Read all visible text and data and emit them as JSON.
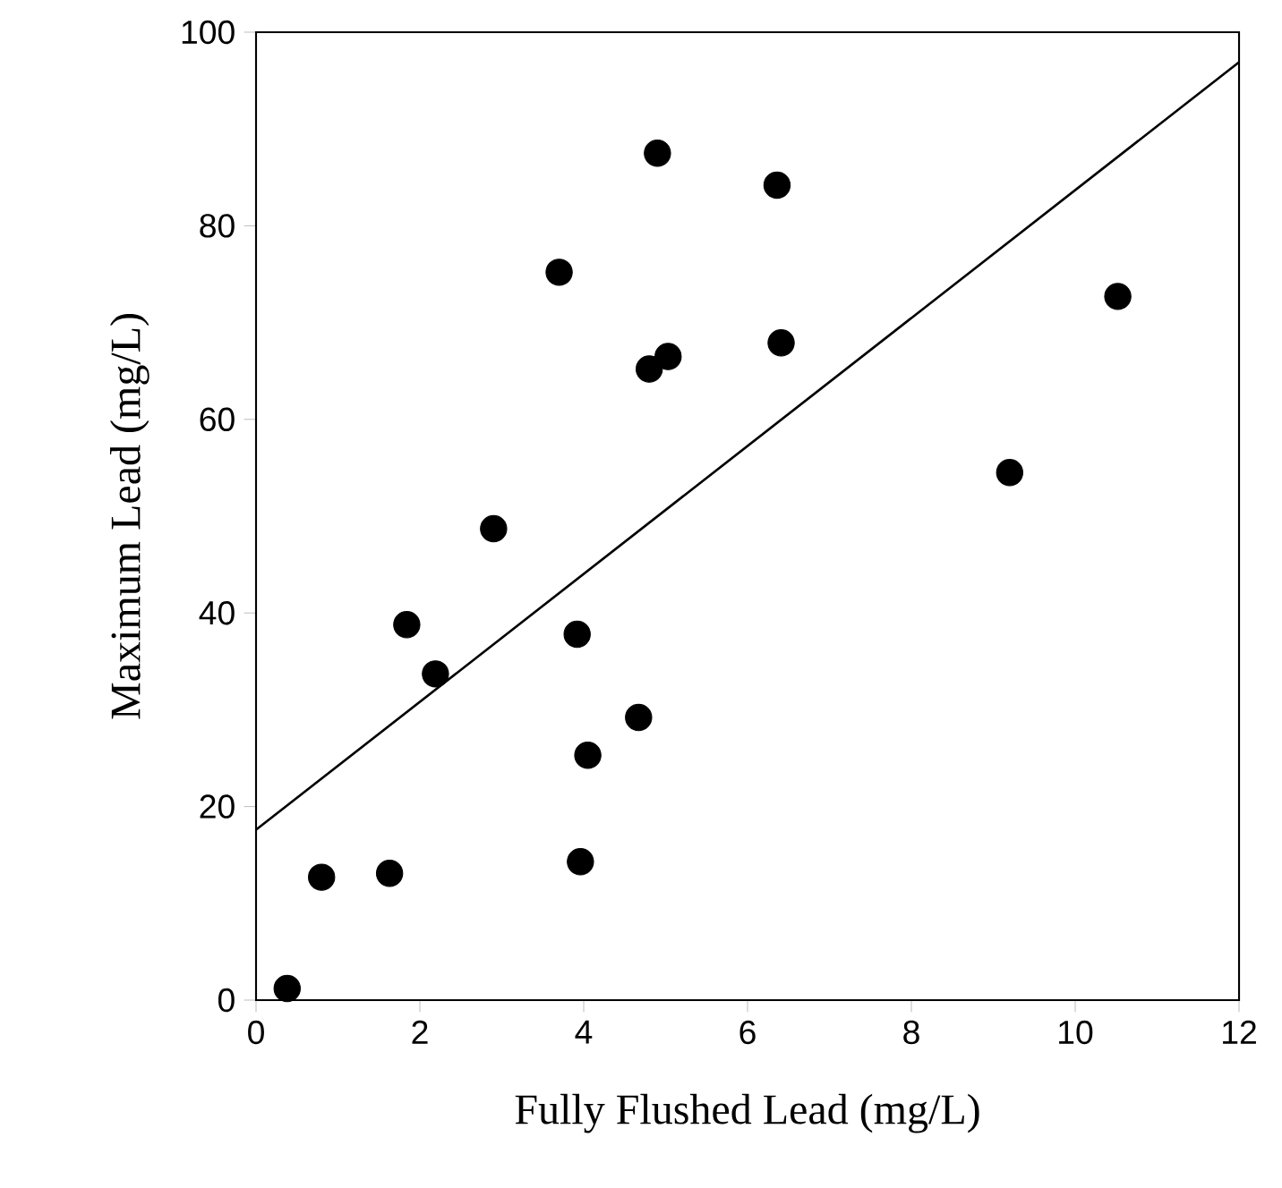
{
  "chart_data": {
    "type": "scatter",
    "xlabel": "Fully Flushed Lead (mg/L)",
    "ylabel": "Maximum Lead (mg/L)",
    "xlim": [
      0,
      12
    ],
    "ylim": [
      0,
      100
    ],
    "xticks": [
      0,
      2,
      4,
      6,
      8,
      10,
      12
    ],
    "yticks": [
      0,
      20,
      40,
      60,
      80,
      100
    ],
    "series": [
      {
        "color": "#000000",
        "marker": "circle",
        "x": [
          0.38,
          0.8,
          1.63,
          1.84,
          2.19,
          2.9,
          3.92,
          3.96,
          4.05,
          4.67,
          4.9,
          6.36,
          3.7,
          10.52,
          6.41,
          4.8,
          5.03,
          9.2
        ],
        "values": [
          1.2,
          12.7,
          13.1,
          38.8,
          33.7,
          48.7,
          37.8,
          14.3,
          25.3,
          29.2,
          87.5,
          84.2,
          75.2,
          72.7,
          67.9,
          65.2,
          66.5,
          54.5
        ]
      },
      {
        "type": "line",
        "color": "#000000",
        "marker": "none",
        "line_style": "solid",
        "x": [
          0,
          12
        ],
        "values": [
          17.6,
          96.9
        ]
      }
    ]
  }
}
